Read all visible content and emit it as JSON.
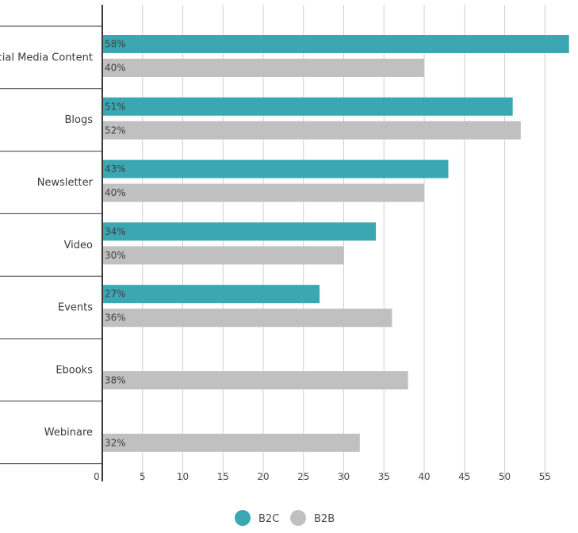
{
  "chart_data": {
    "type": "bar",
    "orientation": "horizontal",
    "categories": [
      "Social Media Content",
      "Blogs",
      "Newsletter",
      "Video",
      "Events",
      "Ebooks",
      "Webinare"
    ],
    "series": [
      {
        "name": "B2C",
        "color": "#3aa7b3",
        "values": [
          58,
          51,
          43,
          34,
          27,
          null,
          null
        ],
        "labels": [
          "58%",
          "51%",
          "43%",
          "34%",
          "27%",
          "",
          ""
        ]
      },
      {
        "name": "B2B",
        "color": "#c0c0c0",
        "values": [
          40,
          52,
          40,
          30,
          36,
          38,
          32
        ],
        "labels": [
          "40%",
          "52%",
          "40%",
          "30%",
          "36%",
          "38%",
          "32%"
        ]
      }
    ],
    "x_ticks": [
      "0",
      "5",
      "10",
      "15",
      "20",
      "25",
      "30",
      "35",
      "40",
      "45",
      "50",
      "55"
    ],
    "xlim": [
      0,
      59
    ],
    "grid": true,
    "legend_position": "bottom-center"
  }
}
